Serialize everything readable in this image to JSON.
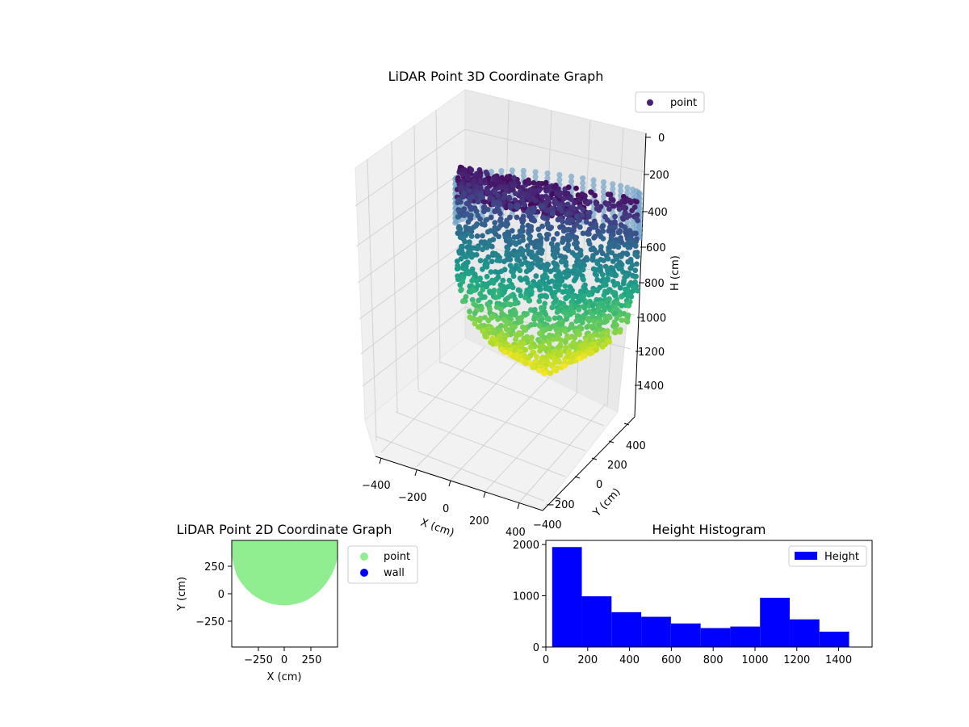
{
  "chart_data": [
    {
      "id": "lidar3d",
      "type": "scatter",
      "title": "LiDAR Point 3D Coordinate Graph",
      "xlabel": "X (cm)",
      "ylabel": "Y (cm)",
      "zlabel": "H (cm)",
      "x_ticks": [
        "−400",
        "−200",
        "0",
        "200",
        "400"
      ],
      "y_ticks": [
        "−400",
        "−200",
        "0",
        "200",
        "400"
      ],
      "z_ticks": [
        "0",
        "200",
        "400",
        "600",
        "800",
        "1000",
        "1200",
        "1400"
      ],
      "xlim": [
        -450,
        450
      ],
      "ylim": [
        -450,
        450
      ],
      "zlim": [
        0,
        1500
      ],
      "z_inverted": true,
      "colormap": "viridis",
      "legend": [
        {
          "label": "point",
          "color": "#482173"
        }
      ],
      "grid": true
    },
    {
      "id": "lidar2d",
      "type": "scatter",
      "title": "LiDAR Point 2D Coordinate Graph",
      "xlabel": "X (cm)",
      "ylabel": "Y (cm)",
      "x_ticks": [
        "−250",
        "0",
        "250"
      ],
      "y_ticks": [
        "250",
        "0",
        "−250"
      ],
      "xlim": [
        -480,
        480
      ],
      "ylim": [
        -480,
        480
      ],
      "point_color": "#90ee90",
      "wall_color": "#0000ff",
      "legend": [
        {
          "label": "point",
          "color": "#90ee90"
        },
        {
          "label": "wall",
          "color": "#0000ff"
        }
      ]
    },
    {
      "id": "height_hist",
      "type": "bar",
      "title": "Height Histogram",
      "bin_edges": [
        30,
        172,
        314,
        456,
        598,
        740,
        882,
        1024,
        1166,
        1308,
        1450
      ],
      "values": [
        1950,
        990,
        680,
        590,
        460,
        370,
        400,
        960,
        540,
        300
      ],
      "color": "#0000ff",
      "legend": [
        {
          "label": "Height",
          "color": "#0000ff"
        }
      ],
      "xlim": [
        0,
        1560
      ],
      "ylim": [
        0,
        2080
      ],
      "x_ticks": [
        0,
        200,
        400,
        600,
        800,
        1000,
        1200,
        1400
      ],
      "y_ticks": [
        0,
        1000,
        2000
      ]
    }
  ]
}
